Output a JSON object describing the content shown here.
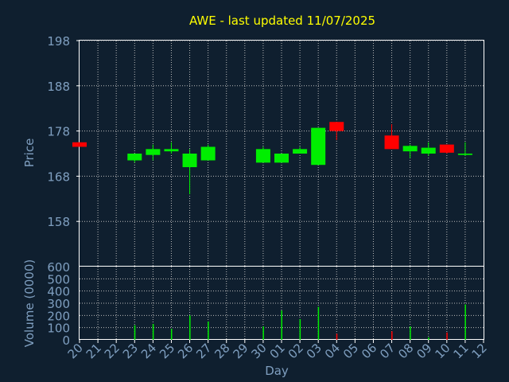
{
  "chart_data": [
    {
      "type": "candlestick",
      "title": "AWE - last updated 11/07/2025",
      "ylabel": "Price",
      "ylim": [
        148,
        198
      ],
      "yticks": [
        198,
        188,
        178,
        168,
        158
      ],
      "grid": true,
      "up_color": "#00ee00",
      "down_color": "#ff0000",
      "candles": [
        {
          "day": "20",
          "open": 175.5,
          "high": 175.5,
          "low": 174.5,
          "close": 174.5
        },
        {
          "day": "23",
          "open": 171.5,
          "high": 173.0,
          "low": 171.0,
          "close": 173.0
        },
        {
          "day": "24",
          "open": 172.7,
          "high": 175.0,
          "low": 171.5,
          "close": 174.0
        },
        {
          "day": "25",
          "open": 173.5,
          "high": 175.5,
          "low": 173.0,
          "close": 174.0
        },
        {
          "day": "26",
          "open": 170.0,
          "high": 174.0,
          "low": 164.0,
          "close": 173.0
        },
        {
          "day": "27",
          "open": 171.5,
          "high": 175.0,
          "low": 171.5,
          "close": 174.5
        },
        {
          "day": "30",
          "open": 171.0,
          "high": 174.5,
          "low": 171.0,
          "close": 174.0
        },
        {
          "day": "01",
          "open": 171.0,
          "high": 173.0,
          "low": 171.0,
          "close": 173.0
        },
        {
          "day": "02",
          "open": 173.0,
          "high": 174.5,
          "low": 173.0,
          "close": 174.0
        },
        {
          "day": "03",
          "open": 170.5,
          "high": 178.7,
          "low": 170.5,
          "close": 178.7
        },
        {
          "day": "04",
          "open": 180.0,
          "high": 180.0,
          "low": 176.0,
          "close": 178.0
        },
        {
          "day": "07",
          "open": 177.0,
          "high": 179.5,
          "low": 174.0,
          "close": 174.0
        },
        {
          "day": "08",
          "open": 173.5,
          "high": 175.0,
          "low": 172.0,
          "close": 174.7
        },
        {
          "day": "09",
          "open": 173.0,
          "high": 175.5,
          "low": 172.5,
          "close": 174.3
        },
        {
          "day": "10",
          "open": 175.0,
          "high": 175.0,
          "low": 173.0,
          "close": 173.2
        },
        {
          "day": "11",
          "open": 172.7,
          "high": 175.5,
          "low": 172.5,
          "close": 173.0
        }
      ]
    },
    {
      "type": "bar",
      "ylabel": "Volume (0000)",
      "xlabel": "Day",
      "ylim": [
        0,
        600
      ],
      "yticks": [
        600,
        500,
        400,
        300,
        200,
        100,
        0
      ],
      "categories": [
        "20",
        "21",
        "22",
        "23",
        "24",
        "25",
        "26",
        "27",
        "28",
        "29",
        "30",
        "01",
        "02",
        "03",
        "04",
        "05",
        "06",
        "07",
        "08",
        "09",
        "10",
        "11",
        "12"
      ],
      "volumes": [
        {
          "day": "23",
          "value": 120,
          "color": "#00ee00"
        },
        {
          "day": "24",
          "value": 130,
          "color": "#00ee00"
        },
        {
          "day": "25",
          "value": 90,
          "color": "#00ee00"
        },
        {
          "day": "26",
          "value": 200,
          "color": "#00ee00"
        },
        {
          "day": "27",
          "value": 150,
          "color": "#00ee00"
        },
        {
          "day": "30",
          "value": 110,
          "color": "#00ee00"
        },
        {
          "day": "01",
          "value": 240,
          "color": "#00ee00"
        },
        {
          "day": "02",
          "value": 170,
          "color": "#00ee00"
        },
        {
          "day": "03",
          "value": 270,
          "color": "#00ee00"
        },
        {
          "day": "04",
          "value": 50,
          "color": "#ff0000"
        },
        {
          "day": "07",
          "value": 70,
          "color": "#ff0000"
        },
        {
          "day": "08",
          "value": 110,
          "color": "#00ee00"
        },
        {
          "day": "09",
          "value": 20,
          "color": "#00ee00"
        },
        {
          "day": "10",
          "value": 60,
          "color": "#ff0000"
        },
        {
          "day": "11",
          "value": 290,
          "color": "#00ee00"
        }
      ]
    }
  ],
  "colors": {
    "background": "#0f1f2f",
    "axis_text": "#7f9fc0",
    "title_text": "#ffff00",
    "grid": "#bbbbbb"
  }
}
